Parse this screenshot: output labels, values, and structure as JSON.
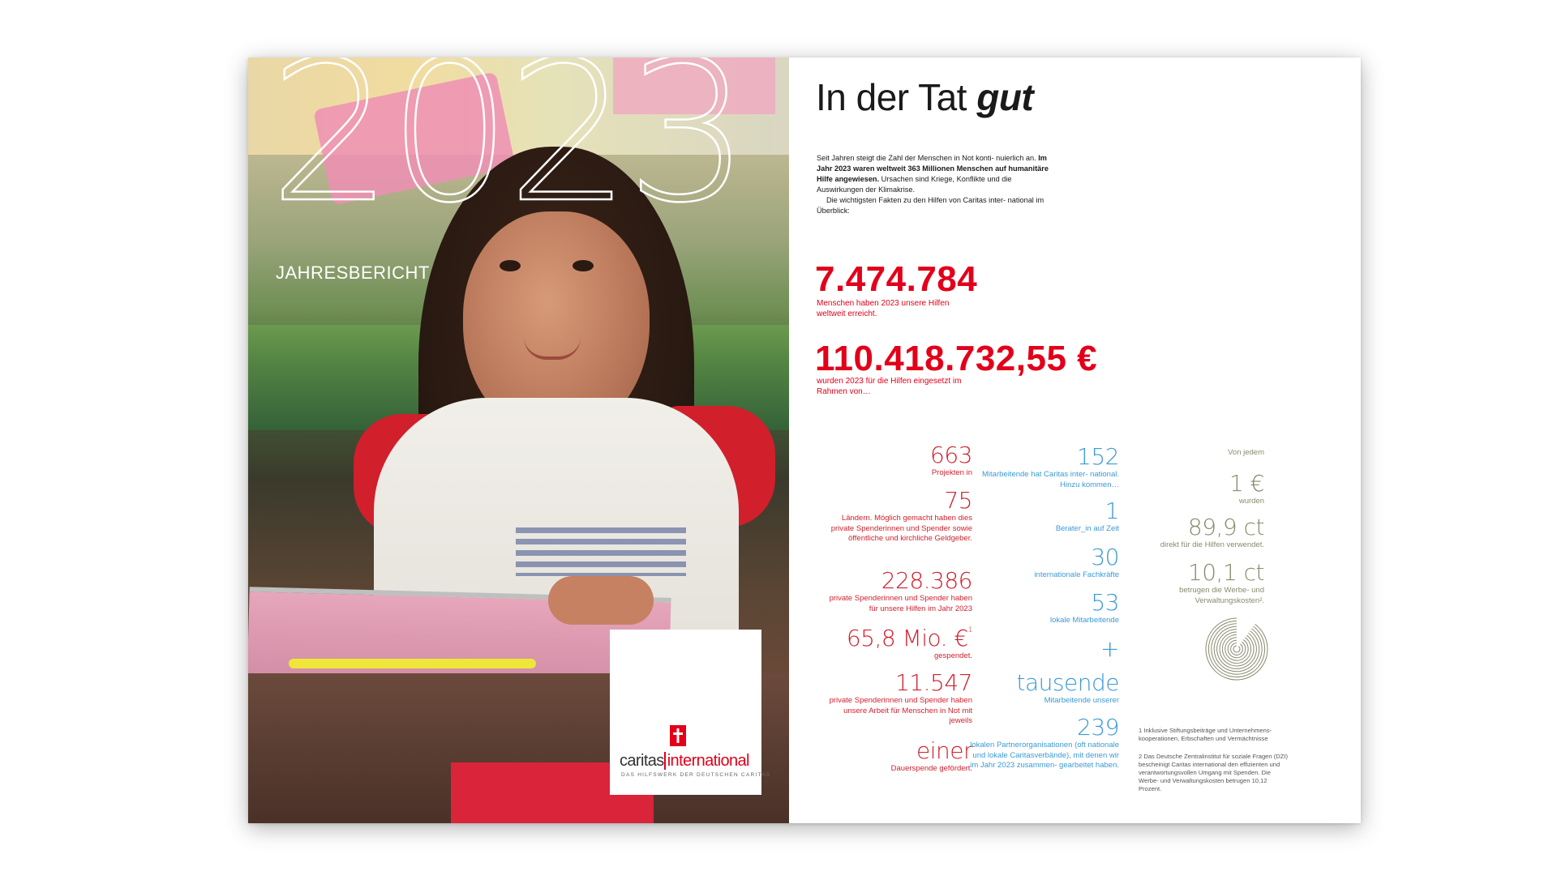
{
  "cover": {
    "year": "2023",
    "subtitle": "JAHRESBERICHT",
    "logo": {
      "word_a": "caritas",
      "word_b": "international",
      "tagline": "DAS HILFSWERK DER DEUTSCHEN CARITAS"
    }
  },
  "right": {
    "headline_a": "In der Tat ",
    "headline_b": "gut",
    "intro_1": "Seit Jahren steigt die Zahl der Menschen in Not konti- nuierlich an. ",
    "intro_bold": "Im Jahr 2023 waren weltweit 363 Millionen Menschen auf humanitäre Hilfe angewiesen.",
    "intro_2": " Ursachen sind Kriege, Konflikte und die Auswirkungen der Klimakrise.",
    "intro_3": "Die wichtigsten Fakten zu den Hilfen von Caritas inter- national im Überblick:",
    "big1_value": "7.474.784",
    "big1_caption": "Menschen haben 2023 unsere Hilfen weltweit erreicht.",
    "big2_value": "110.418.732,55 €",
    "big2_caption": "wurden 2023 für die Hilfen eingesetzt im Rahmen von…"
  },
  "col_red": [
    {
      "value": "663",
      "text": "Projekten in"
    },
    {
      "value": "75",
      "text": "Ländern. Möglich gemacht haben dies private Spenderinnen und Spender sowie öffentliche und kirchliche Geldgeber."
    },
    {
      "value": "228.386",
      "text": "private Spenderinnen und Spender haben für unsere Hilfen im Jahr 2023"
    },
    {
      "value": "65,8 Mio. €",
      "sup": "1",
      "text": "gespendet."
    },
    {
      "value": "11.547",
      "text": "private Spenderinnen und Spender haben unsere Arbeit für Menschen in Not mit jeweils"
    },
    {
      "value": "einer",
      "text": "Dauerspende gefördert."
    }
  ],
  "col_blue": [
    {
      "value": "152",
      "text": "Mitarbeitende hat Caritas inter- national. Hinzu kommen…"
    },
    {
      "value": "1",
      "text": "Berater_in auf Zeit"
    },
    {
      "value": "30",
      "text": "internationale Fachkräfte"
    },
    {
      "value": "53",
      "text": "lokale Mitarbeitende"
    },
    {
      "value": "+",
      "text": ""
    },
    {
      "value": "tausende",
      "text": "Mitarbeitende unserer"
    },
    {
      "value": "239",
      "text": "lokalen Partnerorganisationen (oft nationale und lokale Caritasverbände), mit denen wir im Jahr 2023 zusammen- gearbeitet haben."
    }
  ],
  "col_olive": {
    "lead": "Von jedem",
    "items": [
      {
        "value": "1 €",
        "text": "wurden"
      },
      {
        "value": "89,9 ct",
        "text": "direkt für die Hilfen verwendet."
      },
      {
        "value": "10,1 ct",
        "text": "betrugen die Werbe- und Verwaltungskosten²."
      }
    ],
    "pie_share_hilfen": 0.899,
    "pie_share_verwaltung": 0.101
  },
  "footnotes": {
    "f1": "1 Inklusive Stiftungsbeiträge und Unternehmens- kooperationen, Erbschaften und Vermächtnisse",
    "f2": "2 Das Deutsche Zentralinstitut für soziale Fragen (DZI) bescheinigt Caritas international den effizienten und verantwortungsvollen Umgang mit Spenden. Die Werbe- und Verwaltungskosten betrugen 10,12 Prozent."
  },
  "colors": {
    "red": "#d11f2c",
    "blue": "#3a9ad6",
    "olive": "#8a8a6e",
    "caritas_red": "#e2001a"
  }
}
